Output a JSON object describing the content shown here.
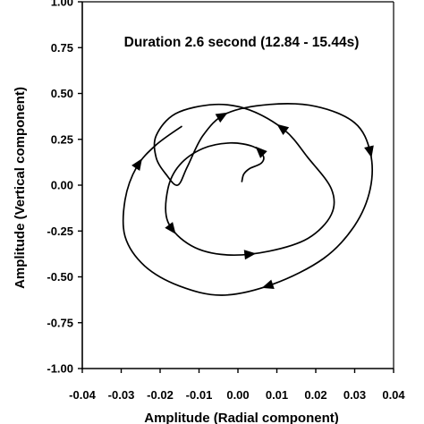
{
  "chart_data": {
    "type": "line",
    "title": "",
    "annotation": "Duration 2.6 second (12.84 - 15.44s)",
    "xlabel": "Amplitude (Radial component)",
    "ylabel": "Amplitude (Vertical component)",
    "xlim": [
      -0.04,
      0.04
    ],
    "ylim": [
      -1.0,
      1.0
    ],
    "x_ticks": [
      "-0.04",
      "-0.03",
      "-0.02",
      "-0.01",
      "0.00",
      "0.01",
      "0.02",
      "0.03",
      "0.04"
    ],
    "y_ticks": [
      "1.00",
      "0.75",
      "0.50",
      "0.25",
      "0.00",
      "-0.25",
      "-0.50",
      "-0.75",
      "-1.00"
    ],
    "grid": false,
    "legend": "none",
    "series": [
      {
        "points": [
          [
            0.001,
            0.02
          ],
          [
            0.0015,
            0.06
          ],
          [
            0.003,
            0.09
          ],
          [
            0.006,
            0.12
          ],
          [
            0.0065,
            0.16
          ],
          [
            0.004,
            0.21
          ],
          [
            -0.002,
            0.23
          ],
          [
            -0.009,
            0.2
          ],
          [
            -0.015,
            0.11
          ],
          [
            -0.018,
            -0.02
          ],
          [
            -0.018,
            -0.2
          ],
          [
            -0.012,
            -0.33
          ],
          [
            -0.003,
            -0.38
          ],
          [
            0.008,
            -0.36
          ],
          [
            0.018,
            -0.29
          ],
          [
            0.024,
            -0.16
          ],
          [
            0.024,
            -0.02
          ],
          [
            0.018,
            0.15
          ],
          [
            0.012,
            0.3
          ],
          [
            0.003,
            0.41
          ],
          [
            -0.006,
            0.44
          ],
          [
            -0.016,
            0.39
          ],
          [
            -0.021,
            0.27
          ],
          [
            -0.021,
            0.15
          ],
          [
            -0.0185,
            0.06
          ],
          [
            -0.0155,
            0.0
          ],
          [
            -0.013,
            0.1
          ],
          [
            -0.009,
            0.27
          ],
          [
            -0.003,
            0.39
          ],
          [
            0.008,
            0.44
          ],
          [
            0.02,
            0.43
          ],
          [
            0.03,
            0.34
          ],
          [
            0.034,
            0.18
          ],
          [
            0.034,
            -0.02
          ],
          [
            0.03,
            -0.22
          ],
          [
            0.022,
            -0.4
          ],
          [
            0.009,
            -0.54
          ],
          [
            -0.004,
            -0.6
          ],
          [
            -0.015,
            -0.55
          ],
          [
            -0.024,
            -0.44
          ],
          [
            -0.029,
            -0.28
          ],
          [
            -0.029,
            -0.08
          ],
          [
            -0.026,
            0.1
          ],
          [
            -0.021,
            0.22
          ],
          [
            -0.0145,
            0.32
          ]
        ],
        "arrow_positions": [
          0.03,
          0.14,
          0.2,
          0.34,
          0.54,
          0.66,
          0.79,
          0.96
        ]
      }
    ]
  }
}
